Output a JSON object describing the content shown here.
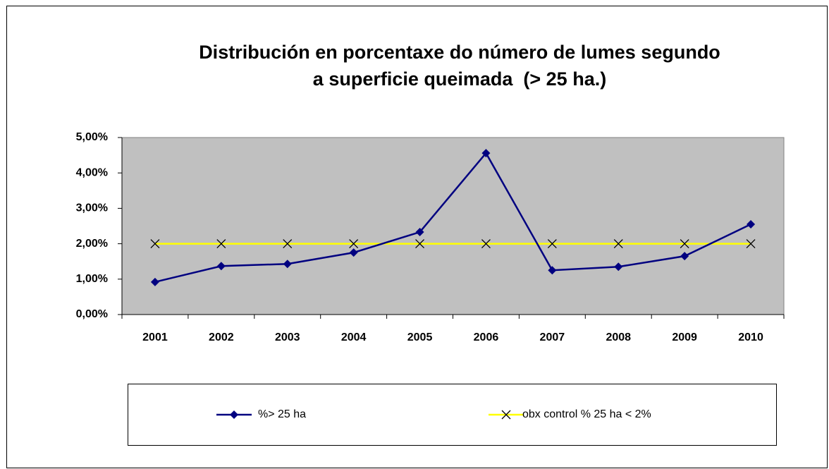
{
  "chart_data": {
    "type": "line",
    "title": [
      "Distribución en porcentaxe do número de lumes segundo",
      "a superficie queimada  (> 25 ha.)"
    ],
    "categories": [
      "2001",
      "2002",
      "2003",
      "2004",
      "2005",
      "2006",
      "2007",
      "2008",
      "2009",
      "2010"
    ],
    "series": [
      {
        "name": "%> 25 ha",
        "color": "#000080",
        "marker": "diamond",
        "values": [
          0.92,
          1.37,
          1.43,
          1.75,
          2.33,
          4.56,
          1.25,
          1.35,
          1.65,
          2.55
        ]
      },
      {
        "name": "obx control % 25 ha < 2%",
        "color": "#ffff00",
        "marker": "x",
        "values": [
          2,
          2,
          2,
          2,
          2,
          2,
          2,
          2,
          2,
          2
        ]
      }
    ],
    "ylim": [
      0,
      5
    ],
    "yticks": [
      {
        "value": 0,
        "label": "0,00%"
      },
      {
        "value": 1,
        "label": "1,00%"
      },
      {
        "value": 2,
        "label": "2,00%"
      },
      {
        "value": 3,
        "label": "3,00%"
      },
      {
        "value": 4,
        "label": "4,00%"
      },
      {
        "value": 5,
        "label": "5,00%"
      }
    ],
    "plot_background": "#c0c0c0",
    "legend": "bottom"
  }
}
